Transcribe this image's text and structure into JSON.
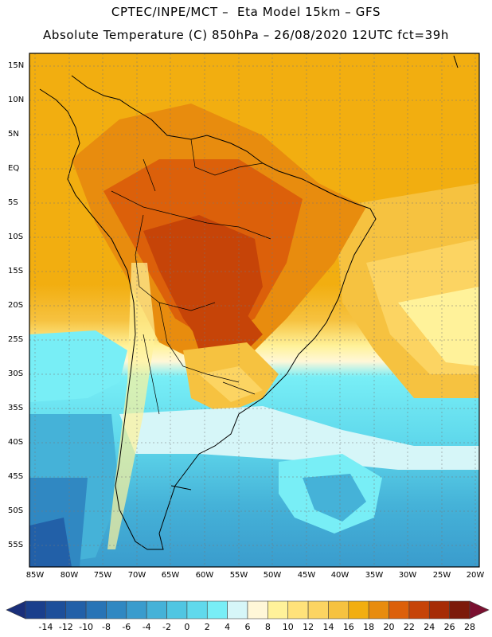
{
  "title": {
    "line1": "CPTEC/INPE/MCT –  Eta Model 15km – GFS",
    "line2": "Absolute Temperature (C) 850hPa – 26/08/2020 12UTC fct=39h"
  },
  "map": {
    "lat_labels": [
      "15N",
      "10N",
      "5N",
      "EQ",
      "5S",
      "10S",
      "15S",
      "20S",
      "25S",
      "30S",
      "35S",
      "40S",
      "45S",
      "50S",
      "55S"
    ],
    "lon_labels": [
      "85W",
      "80W",
      "75W",
      "70W",
      "65W",
      "60W",
      "55W",
      "50W",
      "45W",
      "40W",
      "35W",
      "30W",
      "25W",
      "20W"
    ]
  },
  "colorbar": {
    "labels": [
      "-14",
      "-12",
      "-10",
      "-8",
      "-6",
      "-4",
      "-2",
      "0",
      "2",
      "4",
      "6",
      "8",
      "10",
      "12",
      "14",
      "16",
      "18",
      "20",
      "22",
      "24",
      "26",
      "28"
    ],
    "colors": [
      "#1a3f8c",
      "#1d4f9a",
      "#2260a8",
      "#2874b6",
      "#3088c2",
      "#3a9ccd",
      "#45b2d8",
      "#50c6e2",
      "#60d9ec",
      "#78eef6",
      "#d6f6f8",
      "#fff7d8",
      "#fff29a",
      "#ffe27a",
      "#fcd462",
      "#f6c240",
      "#f2ae10",
      "#e88c0e",
      "#dc600a",
      "#c64408",
      "#a62c06",
      "#7c1a0a"
    ],
    "under_color": "#1a2f7a",
    "over_color": "#7a1030"
  }
}
